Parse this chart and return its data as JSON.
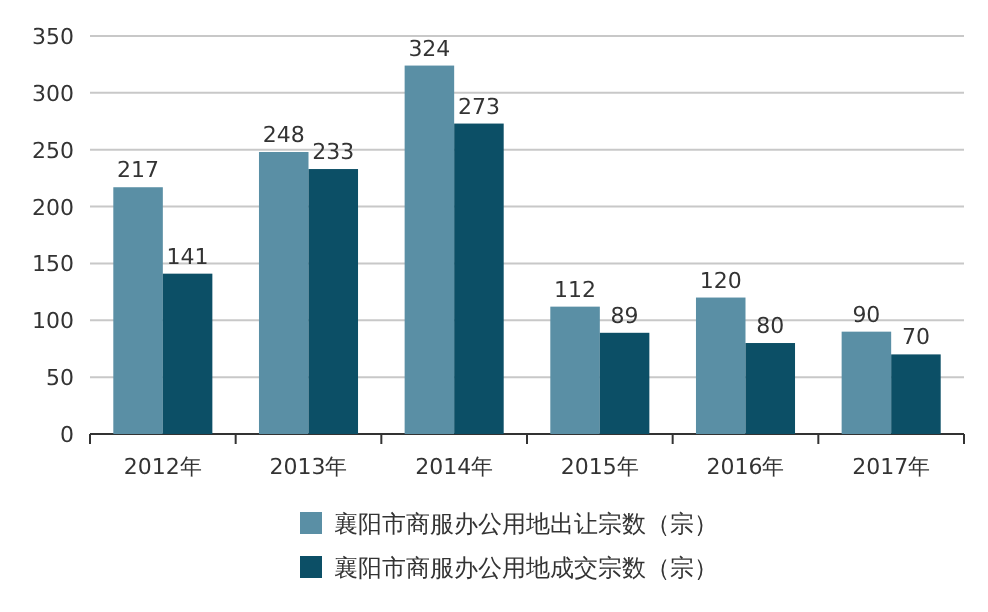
{
  "chart_data": {
    "type": "bar",
    "categories": [
      "2012年",
      "2013年",
      "2014年",
      "2015年",
      "2016年",
      "2017年"
    ],
    "series": [
      {
        "name": "襄阳市商服办公用地出让宗数（宗）",
        "color": "#5a8fa5",
        "values": [
          217,
          248,
          324,
          112,
          120,
          90
        ]
      },
      {
        "name": "襄阳市商服办公用地成交宗数（宗）",
        "color": "#0c4f66",
        "values": [
          141,
          233,
          273,
          89,
          80,
          70
        ]
      }
    ],
    "ylim": [
      0,
      350
    ],
    "yticks": [
      0,
      50,
      100,
      150,
      200,
      250,
      300,
      350
    ],
    "grid": "y",
    "data_labels": true,
    "legend": "bottom"
  }
}
